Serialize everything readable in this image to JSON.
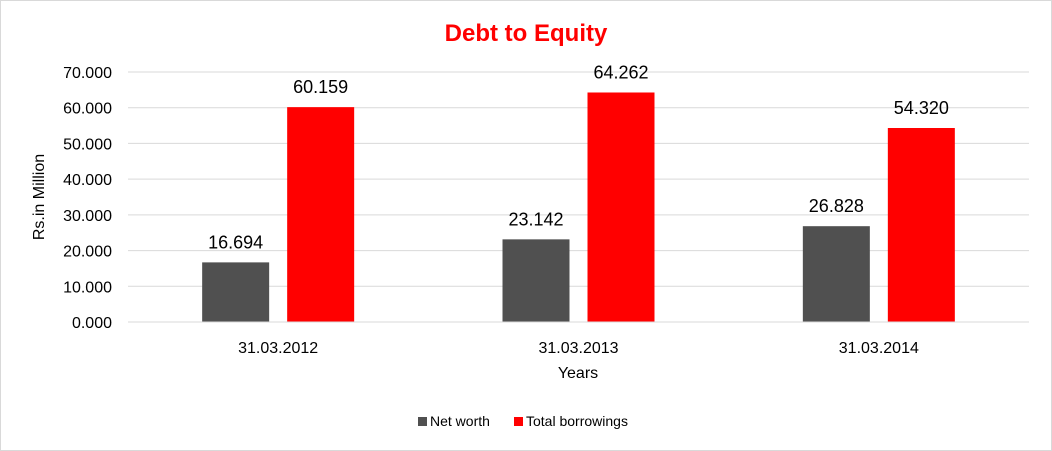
{
  "chart_data": {
    "type": "bar",
    "title": "Debt to Equity",
    "xlabel": "Years",
    "ylabel": "Rs.in Million",
    "categories": [
      "31.03.2012",
      "31.03.2013",
      "31.03.2014"
    ],
    "series": [
      {
        "name": "Net worth",
        "values": [
          16.694,
          23.142,
          26.828
        ],
        "color": "#505050"
      },
      {
        "name": "Total borrowings",
        "values": [
          60.159,
          64.262,
          54.32
        ],
        "color": "#ff0000"
      }
    ],
    "value_labels": [
      [
        "16.694",
        "23.142",
        "26.828"
      ],
      [
        "60.159",
        "64.262",
        "54.320"
      ]
    ],
    "ylim": [
      0,
      70
    ],
    "y_ticks": [
      "0.000",
      "10.000",
      "20.000",
      "30.000",
      "40.000",
      "50.000",
      "60.000",
      "70.000"
    ],
    "title_color": "#ff0000",
    "grid": true,
    "legend_position": "bottom"
  }
}
